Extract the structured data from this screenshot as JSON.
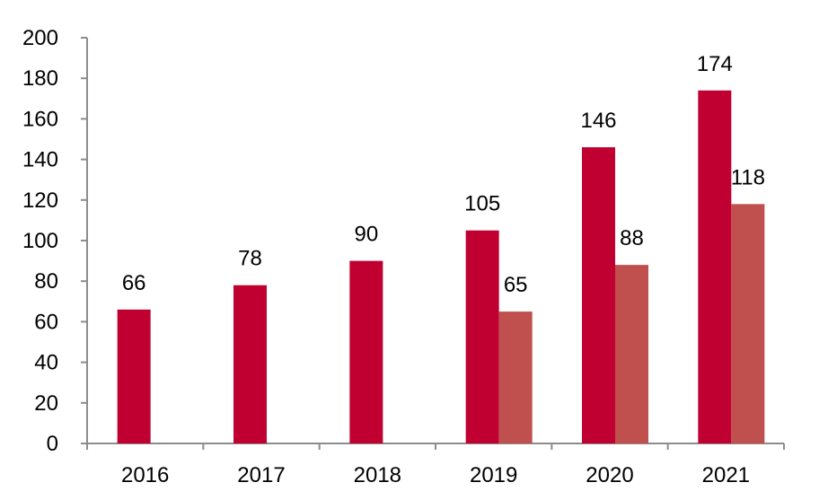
{
  "chart_data": {
    "type": "bar",
    "categories": [
      "2016",
      "2017",
      "2018",
      "2019",
      "2020",
      "2021"
    ],
    "series": [
      {
        "values": [
          66,
          78,
          90,
          105,
          146,
          174
        ],
        "color": "#C00030"
      },
      {
        "values": [
          null,
          null,
          null,
          65,
          88,
          118
        ],
        "color": "#C0504D"
      }
    ],
    "ylim": [
      0,
      200
    ],
    "yticks": [
      0,
      20,
      40,
      60,
      80,
      100,
      120,
      140,
      160,
      180,
      200
    ],
    "grid": false,
    "legend": "none"
  }
}
